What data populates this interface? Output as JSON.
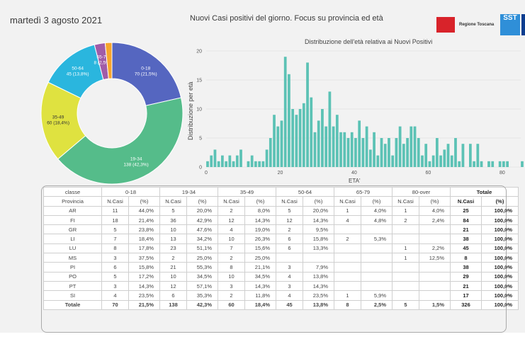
{
  "header": {
    "date": "martedì 3 agosto 2021",
    "title": "Nuovi Casi positivi del giorno. Focus su provincia ed età",
    "logo_text": "Regione Toscana",
    "sst_text": "SST"
  },
  "chart_data": [
    {
      "type": "pie",
      "donut": true,
      "categories": [
        "0-18",
        "19-34",
        "35-49",
        "50-64",
        "65-79",
        "80-over"
      ],
      "values": [
        70,
        138,
        60,
        45,
        8,
        5
      ],
      "labels": [
        "0-18\n70 (21,5%)",
        "19-34\n138 (42,3%)",
        "35-49\n60 (18,4%)",
        "50-64\n45 (13,8%)",
        "65-79\n8 (2,5%)",
        ""
      ],
      "colors": [
        "#5566c0",
        "#55bc8a",
        "#dfe240",
        "#2ab6de",
        "#a05ca8",
        "#f7a52c"
      ]
    },
    {
      "type": "bar",
      "title": "Distribuzione dell'età relativa ai Nuovi Positivi",
      "xlabel": "ETA'",
      "ylabel": "Distribuzione per età",
      "xlim": [
        0,
        85
      ],
      "ylim": [
        0,
        20
      ],
      "xticks": [
        0,
        20,
        40,
        60,
        80
      ],
      "yticks": [
        0,
        5,
        10,
        15,
        20
      ],
      "color": "#5cc2b5",
      "x": [
        0,
        1,
        2,
        3,
        4,
        5,
        6,
        7,
        8,
        9,
        10,
        11,
        12,
        13,
        14,
        15,
        16,
        17,
        18,
        19,
        20,
        21,
        22,
        23,
        24,
        25,
        26,
        27,
        28,
        29,
        30,
        31,
        32,
        33,
        34,
        35,
        36,
        37,
        38,
        39,
        40,
        41,
        42,
        43,
        44,
        45,
        46,
        47,
        48,
        49,
        50,
        51,
        52,
        53,
        54,
        55,
        56,
        57,
        58,
        59,
        60,
        61,
        62,
        63,
        64,
        65,
        66,
        67,
        68,
        69,
        70,
        71,
        72,
        73,
        74,
        75,
        76,
        77,
        78,
        79,
        80,
        81,
        82,
        83,
        84,
        85
      ],
      "values": [
        1,
        2,
        3,
        1,
        2,
        1,
        2,
        1,
        2,
        3,
        0,
        1,
        2,
        1,
        1,
        1,
        3,
        5,
        9,
        7,
        8,
        19,
        16,
        10,
        9,
        10,
        11,
        18,
        12,
        6,
        8,
        10,
        7,
        13,
        7,
        9,
        6,
        6,
        5,
        6,
        5,
        8,
        5,
        7,
        3,
        6,
        2,
        5,
        4,
        5,
        2,
        5,
        7,
        4,
        5,
        7,
        7,
        5,
        2,
        4,
        1,
        2,
        5,
        2,
        3,
        4,
        2,
        5,
        1,
        4,
        0,
        4,
        1,
        4,
        1,
        0,
        1,
        1,
        0,
        1,
        1,
        1,
        0,
        0,
        0,
        1
      ],
      "x_note": "values per single year of age"
    }
  ],
  "table": {
    "group_headers": [
      "classe",
      "0-18",
      "19-34",
      "35-49",
      "50-64",
      "65-79",
      "80-over",
      "Totale"
    ],
    "sub_headers": [
      "Provincia",
      "N.Casi",
      "(%)",
      "N.Casi",
      "(%)",
      "N.Casi",
      "(%)",
      "N.Casi",
      "(%)",
      "N.Casi",
      "(%)",
      "N.Casi",
      "(%)",
      "N.Casi",
      "(%)"
    ],
    "rows": [
      [
        "AR",
        "11",
        "44,0%",
        "5",
        "20,0%",
        "2",
        "8,0%",
        "5",
        "20,0%",
        "1",
        "4,0%",
        "1",
        "4,0%",
        "25",
        "100,0%"
      ],
      [
        "FI",
        "18",
        "21,4%",
        "36",
        "42,9%",
        "12",
        "14,3%",
        "12",
        "14,3%",
        "4",
        "4,8%",
        "2",
        "2,4%",
        "84",
        "100,0%"
      ],
      [
        "GR",
        "5",
        "23,8%",
        "10",
        "47,6%",
        "4",
        "19,0%",
        "2",
        "9,5%",
        "",
        "",
        "",
        "",
        "21",
        "100,0%"
      ],
      [
        "LI",
        "7",
        "18,4%",
        "13",
        "34,2%",
        "10",
        "26,3%",
        "6",
        "15,8%",
        "2",
        "5,3%",
        "",
        "",
        "38",
        "100,0%"
      ],
      [
        "LU",
        "8",
        "17,8%",
        "23",
        "51,1%",
        "7",
        "15,6%",
        "6",
        "13,3%",
        "",
        "",
        "1",
        "2,2%",
        "45",
        "100,0%"
      ],
      [
        "MS",
        "3",
        "37,5%",
        "2",
        "25,0%",
        "2",
        "25,0%",
        "",
        "",
        "",
        "",
        "1",
        "12,5%",
        "8",
        "100,0%"
      ],
      [
        "PI",
        "6",
        "15,8%",
        "21",
        "55,3%",
        "8",
        "21,1%",
        "3",
        "7,9%",
        "",
        "",
        "",
        "",
        "38",
        "100,0%"
      ],
      [
        "PO",
        "5",
        "17,2%",
        "10",
        "34,5%",
        "10",
        "34,5%",
        "4",
        "13,8%",
        "",
        "",
        "",
        "",
        "29",
        "100,0%"
      ],
      [
        "PT",
        "3",
        "14,3%",
        "12",
        "57,1%",
        "3",
        "14,3%",
        "3",
        "14,3%",
        "",
        "",
        "",
        "",
        "21",
        "100,0%"
      ],
      [
        "SI",
        "4",
        "23,5%",
        "6",
        "35,3%",
        "2",
        "11,8%",
        "4",
        "23,5%",
        "1",
        "5,9%",
        "",
        "",
        "17",
        "100,0%"
      ]
    ],
    "total_row": [
      "Totale",
      "70",
      "21,5%",
      "138",
      "42,3%",
      "60",
      "18,4%",
      "45",
      "13,8%",
      "8",
      "2,5%",
      "5",
      "1,5%",
      "326",
      "100,0%"
    ]
  }
}
